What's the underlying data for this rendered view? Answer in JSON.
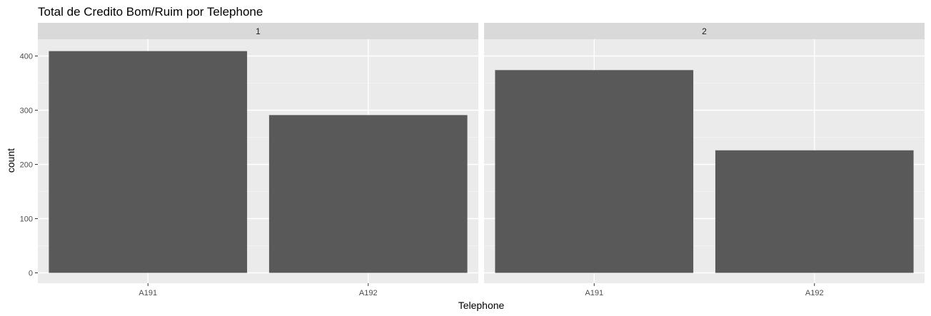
{
  "chart_data": {
    "type": "bar",
    "title": "Total de Credito Bom/Ruim por Telephone",
    "xlabel": "Telephone",
    "ylabel": "count",
    "categories": [
      "A191",
      "A192"
    ],
    "ylim": [
      0,
      430
    ],
    "yticks": [
      0,
      100,
      200,
      300,
      400
    ],
    "grid": true,
    "facets": [
      {
        "label": "1",
        "values": [
          409,
          291
        ]
      },
      {
        "label": "2",
        "values": [
          374,
          226
        ]
      }
    ],
    "colors": {
      "bar": "#595959",
      "panel": "#ebebeb",
      "strip": "#d9d9d9",
      "grid_major": "#ffffff",
      "grid_minor": "#f5f5f5"
    }
  }
}
